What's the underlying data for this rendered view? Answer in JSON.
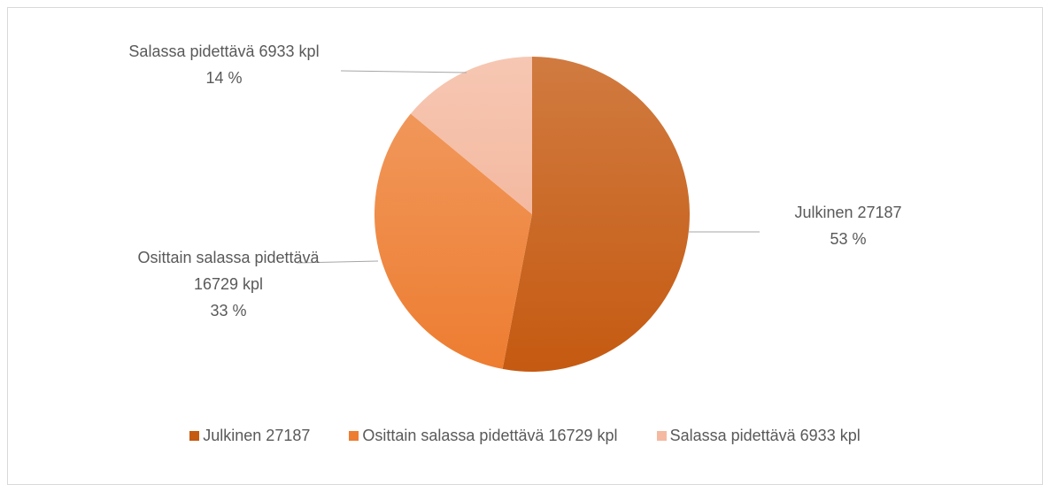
{
  "chart_data": {
    "type": "pie",
    "categories": [
      "Julkinen 27187",
      "Osittain salassa pidettävä 16729 kpl",
      "Salassa pidettävä 6933 kpl"
    ],
    "values": [
      53,
      33,
      14
    ],
    "value_labels": [
      "53 %",
      "33 %",
      "14 %"
    ],
    "colors": [
      "#c55a11",
      "#ed7d31",
      "#f4b9a0"
    ],
    "legend": "bottom"
  }
}
